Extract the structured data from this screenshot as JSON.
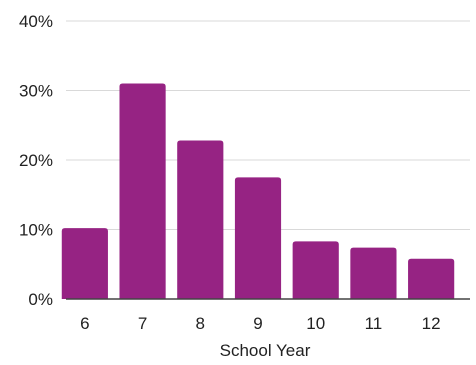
{
  "chart_data": {
    "type": "bar",
    "title": "",
    "xlabel": "School Year",
    "ylabel": "",
    "categories": [
      "6",
      "7",
      "8",
      "9",
      "10",
      "11",
      "12"
    ],
    "series": [
      {
        "values": [
          10.2,
          31.0,
          22.8,
          17.5,
          8.3,
          7.4,
          5.8
        ]
      }
    ],
    "yticks": [
      "0%",
      "10%",
      "20%",
      "30%",
      "40%"
    ],
    "ylim": [
      0,
      40
    ],
    "grid": true,
    "legend": "none",
    "bar_color": "#962383",
    "grid_color": "#d9d9d9",
    "axis_color": "#444444"
  }
}
